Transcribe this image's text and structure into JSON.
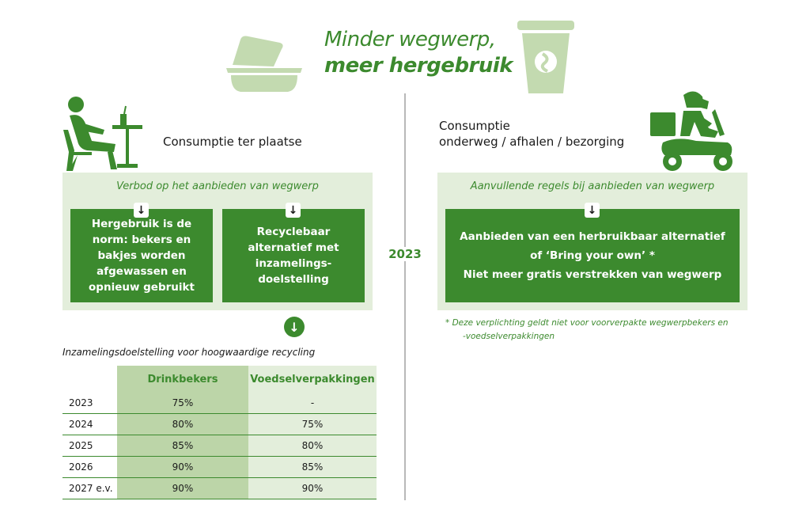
{
  "title": {
    "line1": "Minder wegwerp,",
    "line2": "meer hergebruik"
  },
  "year_center": "2023",
  "left": {
    "context_label": "Consumptie ter plaatse",
    "panel_heading": "Verbod op het aanbieden van wegwerp",
    "box1": "Hergebruik is de norm: bekers en bakjes worden afgewassen en opnieuw gebruikt",
    "box2": "Recyclebaar alternatief met inzamelings-doelstelling"
  },
  "right": {
    "context_label_line1": "Consumptie",
    "context_label_line2": "onderweg / afhalen / bezorging",
    "panel_heading": "Aanvullende regels bij aanbieden van wegwerp",
    "box_line1": "Aanbieden van een herbruikbaar alternatief",
    "box_line2": "of ‘Bring your own’ *",
    "box_line3": "Niet meer gratis verstrekken van wegwerp",
    "footnote_line1": "* Deze verplichting geldt niet voor voorverpakte wegwerpbekers en",
    "footnote_line2": "-voedselverpakkingen"
  },
  "arrow_glyph": "↓",
  "table": {
    "title": "Inzamelingsdoelstelling voor hoogwaardige recycling",
    "headers": [
      "",
      "Drinkbekers",
      "Voedselverpakkingen"
    ],
    "rows": [
      [
        "2023",
        "75%",
        "-"
      ],
      [
        "2024",
        "80%",
        "75%"
      ],
      [
        "2025",
        "85%",
        "80%"
      ],
      [
        "2026",
        "90%",
        "85%"
      ],
      [
        "2027 e.v.",
        "90%",
        "90%"
      ]
    ]
  },
  "colors": {
    "green": "#3c8a2e",
    "light_green": "#e3eedb",
    "mid_green": "#bcd5a8",
    "pale_icon": "#c3dab0"
  },
  "icons": [
    "food-container-icon",
    "coffee-cup-icon",
    "person-at-table-icon",
    "delivery-scooter-icon"
  ]
}
